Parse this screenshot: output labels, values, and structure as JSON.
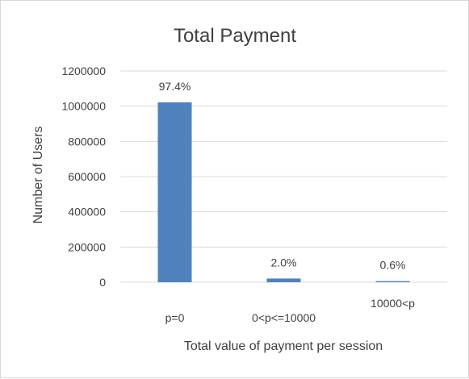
{
  "chart_data": {
    "type": "bar",
    "title": "Total Payment",
    "xlabel": "Total value of payment per session",
    "ylabel": "Number of Users",
    "categories": [
      "p=0",
      "0<p<=10000",
      "10000<p"
    ],
    "values": [
      1022000,
      21000,
      6300
    ],
    "data_labels": [
      "97.4%",
      "2.0%",
      "0.6%"
    ],
    "ylim": [
      0,
      1200000
    ],
    "yticks": [
      "0",
      "200000",
      "400000",
      "600000",
      "800000",
      "1000000",
      "1200000"
    ],
    "grid": true,
    "legend": "none",
    "bar_color": "#4f81bd",
    "grid_color": "#d9d9d9"
  }
}
